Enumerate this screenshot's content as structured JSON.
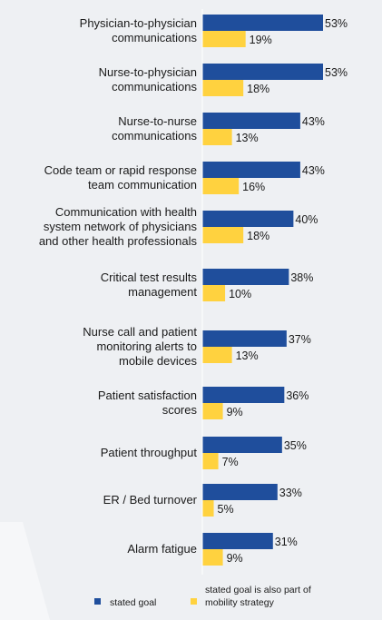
{
  "chart_data": {
    "type": "bar",
    "orientation": "horizontal",
    "categories": [
      [
        "Physician-to-physician",
        "communications"
      ],
      [
        "Nurse-to-physician",
        "communications"
      ],
      [
        "Nurse-to-nurse",
        "communications"
      ],
      [
        "Code team or rapid response",
        "team communication"
      ],
      [
        "Communication with health",
        "system network of physicians",
        "and other health professionals"
      ],
      [
        "Critical test results",
        "management"
      ],
      [
        "Nurse call and patient",
        "monitoring alerts to",
        "mobile devices"
      ],
      [
        "Patient satisfaction",
        "scores"
      ],
      [
        "Patient throughput"
      ],
      [
        "ER / Bed turnover"
      ],
      [
        "Alarm fatigue"
      ]
    ],
    "series": [
      {
        "name": "stated goal",
        "color": "#1f4e9c",
        "values": [
          53,
          53,
          43,
          43,
          40,
          38,
          37,
          36,
          35,
          33,
          31
        ]
      },
      {
        "name": "stated goal is also part of mobility strategy",
        "color": "#ffd23f",
        "values": [
          19,
          18,
          13,
          16,
          18,
          10,
          13,
          9,
          7,
          5,
          9
        ]
      }
    ],
    "value_suffix": "%",
    "xlim": [
      0,
      53
    ],
    "grid": false,
    "legend": {
      "position": "bottom",
      "items": [
        {
          "lines": [
            "stated goal"
          ]
        },
        {
          "lines": [
            "stated goal is also part of",
            "mobility strategy"
          ]
        }
      ]
    }
  }
}
